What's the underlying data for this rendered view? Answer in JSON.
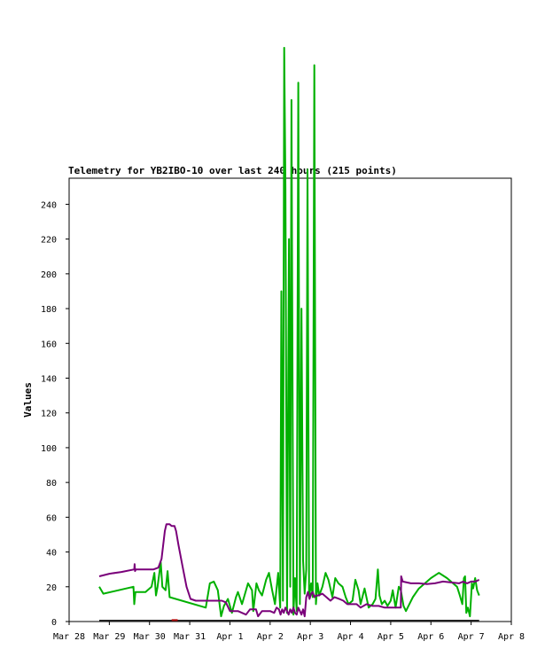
{
  "chart_data": {
    "type": "line",
    "title": "Telemetry for YB2IBO-10 over last 240 hours (215 points)",
    "xlabel": "",
    "ylabel": "Values",
    "x_tick_labels": [
      "Mar 28",
      "Mar 29",
      "Mar 30",
      "Mar 31",
      "Apr 1",
      "Apr 2",
      "Apr 3",
      "Apr 4",
      "Apr 5",
      "Apr 6",
      "Apr 7",
      "Apr 8"
    ],
    "xlim": [
      0,
      11
    ],
    "ylim": [
      0,
      255
    ],
    "y_ticks": [
      0,
      20,
      40,
      60,
      80,
      100,
      120,
      140,
      160,
      180,
      200,
      220,
      240
    ],
    "grid": false,
    "colors": {
      "green": "#00b000",
      "purple": "#7a007a",
      "dark": "#202020",
      "red": "#b00000"
    },
    "series": [
      {
        "color": "#00b000",
        "points": [
          [
            0.75,
            20
          ],
          [
            0.85,
            16
          ],
          [
            1.6,
            20
          ],
          [
            1.62,
            10
          ],
          [
            1.65,
            17
          ],
          [
            1.9,
            17
          ],
          [
            2.05,
            20
          ],
          [
            2.12,
            28
          ],
          [
            2.16,
            15
          ],
          [
            2.2,
            20
          ],
          [
            2.28,
            34
          ],
          [
            2.32,
            20
          ],
          [
            2.4,
            18
          ],
          [
            2.45,
            29
          ],
          [
            2.5,
            14
          ],
          [
            3.4,
            8
          ],
          [
            3.5,
            22
          ],
          [
            3.6,
            23
          ],
          [
            3.7,
            18
          ],
          [
            3.78,
            3
          ],
          [
            3.85,
            9
          ],
          [
            3.95,
            13
          ],
          [
            4.05,
            5
          ],
          [
            4.15,
            14
          ],
          [
            4.2,
            17
          ],
          [
            4.3,
            10
          ],
          [
            4.45,
            22
          ],
          [
            4.55,
            18
          ],
          [
            4.58,
            6
          ],
          [
            4.66,
            22
          ],
          [
            4.72,
            18
          ],
          [
            4.8,
            15
          ],
          [
            4.9,
            24
          ],
          [
            4.97,
            28
          ],
          [
            5.05,
            18
          ],
          [
            5.12,
            10
          ],
          [
            5.2,
            28
          ],
          [
            5.25,
            8
          ],
          [
            5.28,
            190
          ],
          [
            5.32,
            12
          ],
          [
            5.35,
            330
          ],
          [
            5.38,
            250
          ],
          [
            5.42,
            5
          ],
          [
            5.47,
            220
          ],
          [
            5.5,
            20
          ],
          [
            5.53,
            300
          ],
          [
            5.58,
            4
          ],
          [
            5.62,
            25
          ],
          [
            5.66,
            6
          ],
          [
            5.7,
            310
          ],
          [
            5.74,
            10
          ],
          [
            5.78,
            180
          ],
          [
            5.82,
            35
          ],
          [
            5.86,
            16
          ],
          [
            5.9,
            30
          ],
          [
            5.93,
            260
          ],
          [
            5.97,
            14
          ],
          [
            6.02,
            22
          ],
          [
            6.06,
            14
          ],
          [
            6.1,
            320
          ],
          [
            6.14,
            10
          ],
          [
            6.18,
            22
          ],
          [
            6.22,
            15
          ],
          [
            6.3,
            20
          ],
          [
            6.38,
            28
          ],
          [
            6.45,
            24
          ],
          [
            6.55,
            14
          ],
          [
            6.62,
            25
          ],
          [
            6.7,
            22
          ],
          [
            6.8,
            20
          ],
          [
            6.88,
            14
          ],
          [
            6.95,
            10
          ],
          [
            7.05,
            12
          ],
          [
            7.12,
            24
          ],
          [
            7.2,
            18
          ],
          [
            7.25,
            10
          ],
          [
            7.35,
            19
          ],
          [
            7.45,
            8
          ],
          [
            7.55,
            10
          ],
          [
            7.62,
            13
          ],
          [
            7.68,
            30
          ],
          [
            7.72,
            15
          ],
          [
            7.78,
            10
          ],
          [
            7.85,
            12
          ],
          [
            7.92,
            9
          ],
          [
            8.0,
            12
          ],
          [
            8.05,
            18
          ],
          [
            8.12,
            8
          ],
          [
            8.2,
            20
          ],
          [
            8.25,
            18
          ],
          [
            8.32,
            9
          ],
          [
            8.38,
            6
          ],
          [
            8.42,
            8
          ],
          [
            8.55,
            14
          ],
          [
            8.7,
            19
          ],
          [
            8.85,
            22
          ],
          [
            9.0,
            25
          ],
          [
            9.2,
            28
          ],
          [
            9.4,
            25
          ],
          [
            9.55,
            22
          ],
          [
            9.65,
            20
          ],
          [
            9.72,
            15
          ],
          [
            9.78,
            10
          ],
          [
            9.82,
            25
          ],
          [
            9.85,
            26
          ],
          [
            9.88,
            5
          ],
          [
            9.92,
            8
          ],
          [
            9.97,
            3
          ],
          [
            10.02,
            22
          ],
          [
            10.05,
            19
          ],
          [
            10.1,
            25
          ],
          [
            10.15,
            18
          ],
          [
            10.2,
            15
          ]
        ]
      },
      {
        "color": "#7a007a",
        "points": [
          [
            0.75,
            26
          ],
          [
            1.0,
            27.5
          ],
          [
            1.3,
            28.5
          ],
          [
            1.62,
            30
          ],
          [
            1.63,
            33
          ],
          [
            1.64,
            29
          ],
          [
            1.66,
            30
          ],
          [
            2.1,
            30
          ],
          [
            2.22,
            31
          ],
          [
            2.3,
            36
          ],
          [
            2.38,
            52
          ],
          [
            2.42,
            56
          ],
          [
            2.5,
            56
          ],
          [
            2.55,
            55
          ],
          [
            2.62,
            55
          ],
          [
            2.66,
            52
          ],
          [
            2.72,
            44
          ],
          [
            2.82,
            32
          ],
          [
            2.92,
            20
          ],
          [
            3.02,
            13
          ],
          [
            3.15,
            12
          ],
          [
            3.4,
            12
          ],
          [
            3.8,
            12
          ],
          [
            3.9,
            11
          ],
          [
            4.0,
            6
          ],
          [
            4.2,
            6
          ],
          [
            4.4,
            4
          ],
          [
            4.5,
            7
          ],
          [
            4.65,
            7
          ],
          [
            4.7,
            3
          ],
          [
            4.8,
            6
          ],
          [
            5.0,
            6
          ],
          [
            5.1,
            5
          ],
          [
            5.16,
            8
          ],
          [
            5.22,
            7
          ],
          [
            5.26,
            4
          ],
          [
            5.3,
            7
          ],
          [
            5.34,
            5
          ],
          [
            5.38,
            8
          ],
          [
            5.42,
            6
          ],
          [
            5.46,
            4
          ],
          [
            5.5,
            7
          ],
          [
            5.54,
            5
          ],
          [
            5.58,
            8
          ],
          [
            5.62,
            5
          ],
          [
            5.66,
            4
          ],
          [
            5.7,
            8
          ],
          [
            5.74,
            6
          ],
          [
            5.78,
            4
          ],
          [
            5.82,
            7
          ],
          [
            5.86,
            3
          ],
          [
            5.9,
            14
          ],
          [
            5.94,
            17
          ],
          [
            5.98,
            13
          ],
          [
            6.02,
            16
          ],
          [
            6.06,
            17
          ],
          [
            6.1,
            14
          ],
          [
            6.14,
            15
          ],
          [
            6.2,
            15
          ],
          [
            6.3,
            16
          ],
          [
            6.4,
            14
          ],
          [
            6.5,
            12
          ],
          [
            6.6,
            14
          ],
          [
            6.72,
            13
          ],
          [
            6.82,
            12
          ],
          [
            6.92,
            10
          ],
          [
            7.05,
            10
          ],
          [
            7.15,
            10
          ],
          [
            7.25,
            8
          ],
          [
            7.4,
            10
          ],
          [
            7.55,
            9
          ],
          [
            7.7,
            9
          ],
          [
            7.85,
            8
          ],
          [
            8.0,
            8
          ],
          [
            8.15,
            8
          ],
          [
            8.25,
            8
          ],
          [
            8.26,
            26
          ],
          [
            8.3,
            23
          ],
          [
            8.5,
            22
          ],
          [
            8.7,
            22
          ],
          [
            8.9,
            21.5
          ],
          [
            9.1,
            22
          ],
          [
            9.3,
            23
          ],
          [
            9.5,
            22.5
          ],
          [
            9.7,
            22
          ],
          [
            9.8,
            23
          ],
          [
            9.9,
            22
          ],
          [
            10.0,
            23
          ],
          [
            10.1,
            23
          ],
          [
            10.2,
            24
          ]
        ]
      },
      {
        "color": "#202020",
        "points": [
          [
            0.75,
            0.5
          ],
          [
            10.2,
            0.5
          ]
        ]
      },
      {
        "color": "#b00000",
        "points": [
          [
            2.55,
            0.8
          ],
          [
            2.7,
            0.8
          ]
        ]
      }
    ]
  }
}
